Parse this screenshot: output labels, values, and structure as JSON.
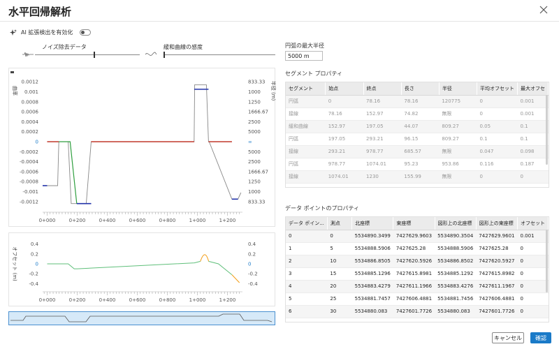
{
  "dialog": {
    "title": "水平回帰解析"
  },
  "ai": {
    "label": "AI 拡張検出を有効化",
    "enabled": false
  },
  "sliders": {
    "noise": {
      "label": "ノイズ除去データ",
      "value": 0.45
    },
    "curve": {
      "label": "緩和曲線の感度",
      "value": 0.0
    }
  },
  "radius": {
    "label": "円弧の最大半径",
    "value": "5000 m"
  },
  "segments": {
    "title": "セグメント プロパティ",
    "columns": [
      "セグメント",
      "始点",
      "終点",
      "長さ",
      "半径",
      "平均オフセット",
      "最大オフセ"
    ],
    "rows": [
      [
        "円弧",
        "0",
        "78.16",
        "78.16",
        "120775",
        "0",
        "0.001"
      ],
      [
        "接線",
        "78.16",
        "152.97",
        "74.82",
        "無限",
        "0",
        "0.001"
      ],
      [
        "緩和曲線",
        "152.97",
        "197.05",
        "44.07",
        "809.27",
        "0.05",
        "0.1"
      ],
      [
        "円弧",
        "197.05",
        "293.21",
        "96.15",
        "809.27",
        "0.1",
        "0.1"
      ],
      [
        "接線",
        "293.21",
        "978.77",
        "685.57",
        "無限",
        "0.047",
        "0.098"
      ],
      [
        "円弧",
        "978.77",
        "1074.01",
        "95.23",
        "953.86",
        "0.116",
        "0.187"
      ],
      [
        "接線",
        "1074.01",
        "1230",
        "155.99",
        "無限",
        "0",
        "0"
      ]
    ]
  },
  "points": {
    "title": "データ ポイントのプロパティ",
    "columns": [
      "データ ポイン...",
      "測点",
      "北座標",
      "東座標",
      "図形上の北座標",
      "図形上の東座標",
      "オフセット"
    ],
    "rows": [
      [
        "0",
        "0",
        "5534890.3499",
        "7427629.9603",
        "5534890.3504",
        "7427629.9601",
        "0.001"
      ],
      [
        "1",
        "5",
        "5534888.5906",
        "7427625.28",
        "5534888.5906",
        "7427625.28",
        "0"
      ],
      [
        "2",
        "10",
        "5534886.8505",
        "7427620.5926",
        "5534886.8502",
        "7427620.5927",
        "0"
      ],
      [
        "3",
        "15",
        "5534885.1296",
        "7427615.8981",
        "5534885.1292",
        "7427615.8982",
        "0"
      ],
      [
        "4",
        "20",
        "5534883.4279",
        "7427611.1966",
        "5534883.4276",
        "7427611.1967",
        "0"
      ],
      [
        "5",
        "25",
        "5534881.7457",
        "7427606.4881",
        "5534881.7456",
        "7427606.4881",
        "0"
      ],
      [
        "6",
        "30",
        "5534880.083",
        "7427601.7726",
        "5534880.083",
        "7427601.7726",
        "0"
      ]
    ]
  },
  "buttons": {
    "cancel": "キャンセル",
    "ok": "確認"
  },
  "colors": {
    "accent": "#1a7ac8",
    "tangent": "#c0392b",
    "spiral": "#2e9e3e",
    "arc": "#2233aa",
    "raw": "#888888",
    "offset_green": "#5fbf7a",
    "offset_orange": "#f39c12"
  },
  "chart_data": [
    {
      "type": "line",
      "title": "",
      "ylabel": "曲率",
      "y2label": "半径 (m)",
      "xlabel": "",
      "x_ticks": [
        "0+000",
        "0+200",
        "0+400",
        "0+600",
        "0+800",
        "1+000",
        "1+200"
      ],
      "y_ticks": [
        "0.0012",
        "0.001",
        "0.0008",
        "0.0006",
        "0.0004",
        "0.0002",
        "0",
        "-0.0002",
        "-0.0004",
        "-0.0006",
        "-0.0008",
        "-0.001",
        "-0.0012"
      ],
      "y2_ticks": [
        "833.33",
        "1000",
        "1250",
        "1666.67",
        "2500",
        "5000",
        "∞",
        "5000",
        "2500",
        "1666.67",
        "1250",
        "1000",
        "833.33"
      ],
      "ylim": [
        -0.0013,
        0.0013
      ],
      "xlim": [
        -30,
        1300
      ],
      "series": [
        {
          "name": "raw",
          "x": [
            -30,
            70,
            78,
            140,
            160,
            197,
            260,
            293,
            298,
            978,
            982,
            1060,
            1074,
            1078,
            1230,
            1270,
            1290
          ],
          "y": [
            -0.00088,
            -0.00088,
            0,
            0,
            -0.00124,
            -0.00124,
            -0.00124,
            0,
            0,
            0,
            0.00114,
            0.00114,
            0,
            0,
            -0.00115,
            -0.00115,
            -0.00102
          ]
        },
        {
          "name": "tangent",
          "x": [
            0,
            78.16,
            152.97,
            197.05,
            293.21,
            978.77,
            1074.01,
            1230
          ],
          "y": [
            0,
            0,
            0,
            null,
            0,
            0,
            0,
            0
          ]
        },
        {
          "name": "spiral",
          "x": [
            78.16,
            152.97,
            197.05
          ],
          "y": [
            0,
            0,
            -0.00124
          ]
        },
        {
          "name": "arcs",
          "segments": [
            [
              -30,
              0,
              -0.00088
            ],
            [
              197.05,
              293.21,
              -0.00124
            ],
            [
              978.77,
              1074.01,
              0.00105
            ],
            [
              1230,
              1270,
              -0.00115
            ]
          ]
        }
      ]
    },
    {
      "type": "line",
      "title": "",
      "ylabel": "オフセット (m)",
      "x_ticks": [
        "0+000",
        "0+200",
        "0+400",
        "0+600",
        "0+800",
        "1+000",
        "1+200"
      ],
      "y_ticks": [
        "0.4",
        "0.2",
        "0",
        "-0.2",
        "-0.4"
      ],
      "y2_ticks": [
        "0.4",
        "0.2",
        "0",
        "-0.2",
        "-0.4"
      ],
      "ylim": [
        -0.45,
        0.45
      ],
      "xlim": [
        -30,
        1300
      ],
      "series": [
        {
          "name": "offset",
          "x": [
            0,
            140,
            180,
            200,
            980,
            1020,
            1050,
            1075,
            1140,
            1230,
            1280
          ],
          "y": [
            0,
            0,
            -0.1,
            -0.1,
            0.02,
            0.05,
            0.2,
            0.05,
            0,
            -0.22,
            -0.38
          ]
        }
      ]
    }
  ]
}
